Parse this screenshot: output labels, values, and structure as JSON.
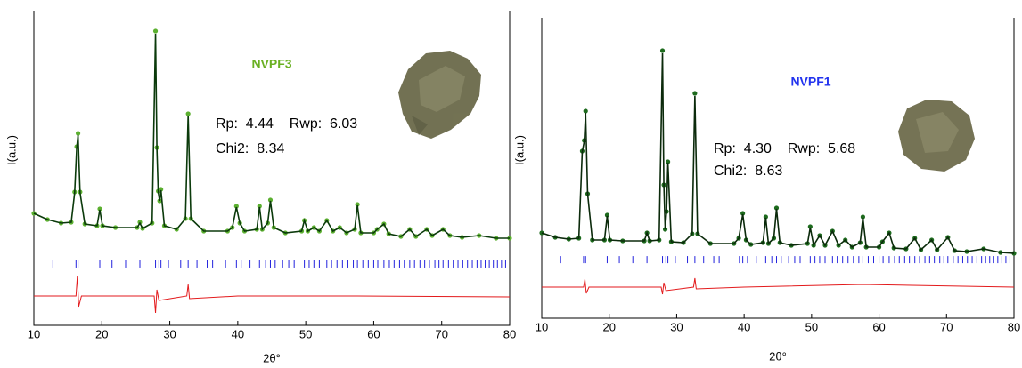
{
  "chart_data": [
    {
      "type": "line",
      "title": "NVPF3",
      "title_color": "#6ab023",
      "x_label": "2θ°",
      "y_label": "I(a.u.)",
      "annotations": [
        "Rp:  4.44    Rwp:  6.03",
        "Chi2:  8.34"
      ],
      "xlim": [
        10,
        80
      ],
      "xticks": [
        10,
        20,
        30,
        40,
        50,
        60,
        70,
        80
      ],
      "ylim": [
        0,
        354
      ],
      "x": [
        10,
        12,
        14,
        15.5,
        16.0,
        16.3,
        16.5,
        16.8,
        17.5,
        19.3,
        19.7,
        20.1,
        22,
        25.2,
        25.6,
        26,
        27.4,
        27.9,
        28.1,
        28.3,
        28.5,
        28.7,
        29.2,
        31,
        32.3,
        32.7,
        33.1,
        35,
        38.5,
        39.2,
        39.8,
        40.3,
        41,
        42.8,
        43.2,
        43.6,
        44.4,
        44.8,
        45.3,
        47,
        49.4,
        49.8,
        50.3,
        51.2,
        52,
        53.1,
        54,
        55,
        56,
        57.2,
        57.6,
        58.1,
        60,
        60.5,
        61.5,
        62.2,
        64,
        65.3,
        66.2,
        67.8,
        68.6,
        70.2,
        71.2,
        73,
        75.5,
        78,
        80
      ],
      "series": [
        {
          "style": "points",
          "color": "#5cb030",
          "values": [
            126,
            119,
            115,
            116,
            150,
            201,
            216,
            150,
            114,
            112,
            131,
            112,
            110,
            110,
            116,
            109,
            115,
            331,
            200,
            151,
            140,
            153,
            112,
            108,
            120,
            238,
            120,
            106,
            106,
            110,
            134,
            115,
            106,
            108,
            134,
            108,
            115,
            141,
            110,
            104,
            106,
            118,
            106,
            110,
            106,
            118,
            106,
            110,
            104,
            108,
            136,
            104,
            104,
            108,
            114,
            103,
            100,
            108,
            100,
            108,
            101,
            108,
            101,
            99,
            101,
            98,
            98
          ]
        },
        {
          "style": "line",
          "color": "#0b3a0b",
          "values": [
            126,
            119,
            115,
            116,
            149,
            199,
            214,
            149,
            114,
            112,
            130,
            112,
            110,
            110,
            115,
            109,
            115,
            328,
            199,
            150,
            140,
            152,
            112,
            108,
            120,
            236,
            120,
            106,
            106,
            110,
            133,
            115,
            106,
            108,
            133,
            108,
            115,
            140,
            110,
            104,
            106,
            118,
            106,
            110,
            106,
            118,
            106,
            110,
            104,
            108,
            135,
            104,
            104,
            108,
            114,
            103,
            100,
            108,
            100,
            108,
            101,
            108,
            101,
            99,
            101,
            98,
            98
          ]
        }
      ],
      "difference": {
        "color": "#e31a1c",
        "x": [
          10,
          16.2,
          16.4,
          16.6,
          17,
          27.7,
          27.9,
          28.1,
          28.4,
          32.5,
          32.7,
          32.9,
          40,
          57.6,
          80
        ],
        "values": [
          33,
          33,
          56,
          21,
          33,
          33,
          14,
          40,
          28,
          33,
          46,
          30,
          33,
          33,
          32
        ]
      },
      "reflections": {
        "color": "#2222dd",
        "x": [
          12.8,
          16.2,
          16.5,
          19.7,
          21.5,
          23.5,
          25.6,
          27.9,
          28.4,
          28.7,
          29.8,
          31.6,
          32.7,
          34,
          35.5,
          36.3,
          38.2,
          39.3,
          39.8,
          40.5,
          41.8,
          43.2,
          44.1,
          44.8,
          45.5,
          46.6,
          47.5,
          48.3,
          49.8,
          50.5,
          51.2,
          52,
          53.1,
          53.8,
          54.6,
          55.4,
          56.2,
          57,
          57.6,
          58.4,
          59.2,
          60,
          60.6,
          61.5,
          62.3,
          63,
          63.8,
          64.5,
          65.3,
          66,
          66.8,
          67.5,
          68.2,
          69,
          69.6,
          70.2,
          71,
          71.7,
          72.4,
          73.1,
          73.8,
          74.5,
          75.2,
          75.8,
          76.4,
          77,
          77.6,
          78.2,
          78.8,
          79.4
        ]
      }
    },
    {
      "type": "line",
      "title": "NVPF1",
      "title_color": "#2233ee",
      "x_label": "2θ°",
      "y_label": "I(a.u.)",
      "annotations": [
        "Rp:  4.30    Rwp:  5.68",
        "Chi2:  8.63"
      ],
      "xlim": [
        10,
        80
      ],
      "xticks": [
        10,
        20,
        30,
        40,
        50,
        60,
        70,
        80
      ],
      "ylim": [
        0,
        338
      ],
      "x": [
        10,
        12,
        14,
        15.5,
        16.0,
        16.3,
        16.5,
        16.8,
        17.5,
        19.3,
        19.7,
        20.1,
        22,
        25.2,
        25.6,
        26,
        27.4,
        27.9,
        28.1,
        28.3,
        28.5,
        28.7,
        29.2,
        31,
        32.3,
        32.7,
        33.1,
        35,
        38.5,
        39.2,
        39.8,
        40.3,
        41,
        42.8,
        43.2,
        43.6,
        44.4,
        44.8,
        45.3,
        47,
        49.4,
        49.8,
        50.3,
        51.2,
        52,
        53.1,
        54,
        55,
        56,
        57.2,
        57.6,
        58.1,
        60,
        60.5,
        61.5,
        62.2,
        64,
        65.3,
        66.2,
        67.8,
        68.6,
        70.2,
        71.2,
        73,
        75.5,
        78,
        80
      ],
      "series": [
        {
          "style": "points",
          "color": "#1e6b1e",
          "values": [
            96,
            91,
            89,
            90,
            188,
            200,
            233,
            140,
            88,
            88,
            116,
            88,
            87,
            87,
            96,
            87,
            88,
            301,
            150,
            100,
            120,
            176,
            86,
            85,
            95,
            253,
            95,
            84,
            84,
            90,
            118,
            88,
            83,
            85,
            114,
            84,
            90,
            124,
            85,
            82,
            84,
            103,
            82,
            93,
            82,
            98,
            82,
            88,
            80,
            85,
            114,
            80,
            80,
            86,
            96,
            79,
            78,
            90,
            77,
            88,
            77,
            91,
            76,
            75,
            78,
            74,
            73
          ]
        },
        {
          "style": "line",
          "color": "#0b2a0b",
          "values": [
            96,
            91,
            89,
            90,
            187,
            199,
            231,
            140,
            88,
            88,
            115,
            88,
            87,
            87,
            96,
            87,
            88,
            298,
            150,
            100,
            120,
            175,
            86,
            85,
            95,
            250,
            95,
            84,
            84,
            90,
            117,
            88,
            83,
            85,
            113,
            84,
            90,
            123,
            85,
            82,
            84,
            102,
            82,
            93,
            82,
            98,
            82,
            88,
            80,
            85,
            113,
            80,
            80,
            86,
            96,
            79,
            78,
            90,
            77,
            88,
            77,
            91,
            76,
            75,
            78,
            74,
            73
          ]
        }
      ],
      "difference": {
        "color": "#e31a1c",
        "x": [
          10,
          16.2,
          16.4,
          16.6,
          17,
          27.7,
          27.9,
          28.1,
          28.4,
          32.5,
          32.7,
          32.9,
          40,
          57.6,
          80
        ],
        "values": [
          35,
          35,
          44,
          28,
          35,
          35,
          27,
          40,
          31,
          35,
          45,
          33,
          35,
          38,
          35
        ]
      },
      "reflections": {
        "color": "#2222dd",
        "x": [
          12.8,
          16.2,
          16.5,
          19.7,
          21.5,
          23.5,
          25.6,
          27.9,
          28.4,
          28.7,
          29.8,
          31.6,
          32.7,
          34,
          35.5,
          36.3,
          38.2,
          39.3,
          39.8,
          40.5,
          41.8,
          43.2,
          44.1,
          44.8,
          45.5,
          46.6,
          47.5,
          48.3,
          49.8,
          50.5,
          51.2,
          52,
          53.1,
          53.8,
          54.6,
          55.4,
          56.2,
          57,
          57.6,
          58.4,
          59.2,
          60,
          60.6,
          61.5,
          62.3,
          63,
          63.8,
          64.5,
          65.3,
          66,
          66.8,
          67.5,
          68.2,
          69,
          69.6,
          70.2,
          71,
          71.7,
          72.4,
          73.1,
          73.8,
          74.5,
          75.2,
          75.8,
          76.4,
          77,
          77.6,
          78.2,
          78.8,
          79.4
        ]
      }
    }
  ]
}
